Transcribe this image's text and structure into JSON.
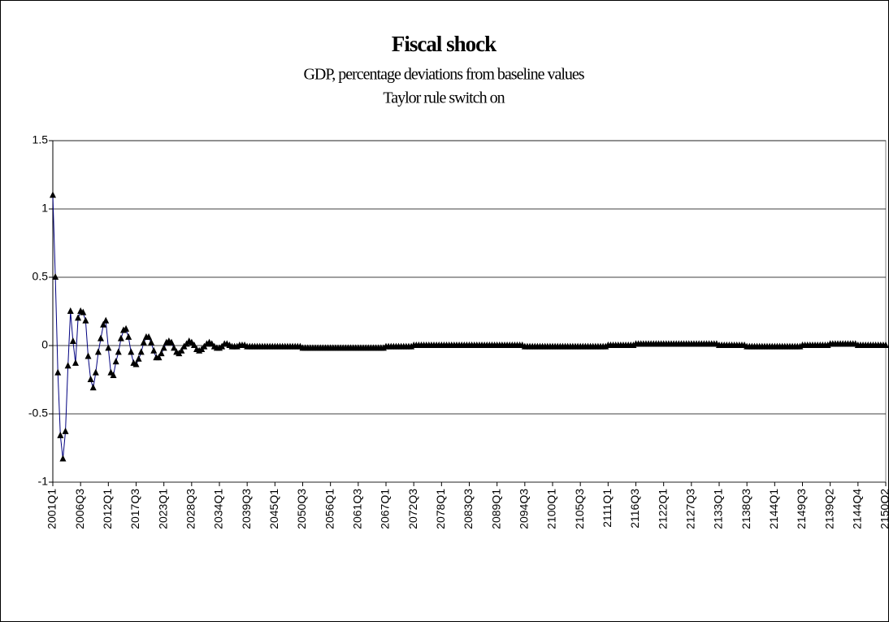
{
  "chart_data": {
    "type": "line",
    "title": "Fiscal shock",
    "subtitle": "GDP, percentage deviations from baseline values",
    "annotation": "Taylor rule switch on",
    "categories": [
      "2001Q1",
      null,
      null,
      null,
      null,
      null,
      null,
      null,
      null,
      null,
      null,
      "2006Q3",
      null,
      null,
      null,
      null,
      null,
      null,
      null,
      null,
      null,
      null,
      "2012Q1",
      null,
      null,
      null,
      null,
      null,
      null,
      null,
      null,
      null,
      null,
      "2017Q3",
      null,
      null,
      null,
      null,
      null,
      null,
      null,
      null,
      null,
      null,
      "2023Q1",
      null,
      null,
      null,
      null,
      null,
      null,
      null,
      null,
      null,
      null,
      "2028Q3",
      null,
      null,
      null,
      null,
      null,
      null,
      null,
      null,
      null,
      null,
      "2034Q1",
      null,
      null,
      null,
      null,
      null,
      null,
      null,
      null,
      null,
      null,
      "2039Q3",
      null,
      null,
      null,
      null,
      null,
      null,
      null,
      null,
      null,
      null,
      "2045Q1",
      null,
      null,
      null,
      null,
      null,
      null,
      null,
      null,
      null,
      null,
      "2050Q3",
      null,
      null,
      null,
      null,
      null,
      null,
      null,
      null,
      null,
      null,
      "2056Q1",
      null,
      null,
      null,
      null,
      null,
      null,
      null,
      null,
      null,
      null,
      "2061Q3",
      null,
      null,
      null,
      null,
      null,
      null,
      null,
      null,
      null,
      null,
      "2067Q1",
      null,
      null,
      null,
      null,
      null,
      null,
      null,
      null,
      null,
      null,
      "2072Q3",
      null,
      null,
      null,
      null,
      null,
      null,
      null,
      null,
      null,
      null,
      "2078Q1",
      null,
      null,
      null,
      null,
      null,
      null,
      null,
      null,
      null,
      null,
      "2083Q3",
      null,
      null,
      null,
      null,
      null,
      null,
      null,
      null,
      null,
      null,
      "2089Q1",
      null,
      null,
      null,
      null,
      null,
      null,
      null,
      null,
      null,
      null,
      "2094Q3",
      null,
      null,
      null,
      null,
      null,
      null,
      null,
      null,
      null,
      null,
      "2100Q1",
      null,
      null,
      null,
      null,
      null,
      null,
      null,
      null,
      null,
      null,
      "2105Q3",
      null,
      null,
      null,
      null,
      null,
      null,
      null,
      null,
      null,
      null,
      "2111Q1",
      null,
      null,
      null,
      null,
      null,
      null,
      null,
      null,
      null,
      null,
      "2116Q3",
      null,
      null,
      null,
      null,
      null,
      null,
      null,
      null,
      null,
      null,
      "2122Q1",
      null,
      null,
      null,
      null,
      null,
      null,
      null,
      null,
      null,
      null,
      "2127Q3",
      null,
      null,
      null,
      null,
      null,
      null,
      null,
      null,
      null,
      null,
      "2133Q1",
      null,
      null,
      null,
      null,
      null,
      null,
      null,
      null,
      null,
      null,
      "2138Q3",
      null,
      null,
      null,
      null,
      null,
      null,
      null,
      null,
      null,
      null,
      "2144Q1",
      null,
      null,
      null,
      null,
      null,
      null,
      null,
      null,
      null,
      null,
      "2149Q3",
      null,
      null,
      null,
      null,
      null,
      null,
      null,
      null,
      null,
      null,
      "2139Q2",
      null,
      null,
      null,
      null,
      null,
      null,
      null,
      null,
      null,
      null,
      "2144Q4",
      null,
      null,
      null,
      null,
      null,
      null,
      null,
      null,
      null,
      null,
      "2150Q2"
    ],
    "series": [
      {
        "color": "#000080",
        "marker_color": "#000000",
        "values": [
          1.1,
          0.5,
          -0.2,
          -0.66,
          -0.83,
          -0.63,
          -0.15,
          0.25,
          0.03,
          -0.13,
          0.2,
          0.25,
          0.24,
          0.18,
          -0.08,
          -0.25,
          -0.31,
          -0.2,
          -0.05,
          0.05,
          0.15,
          0.18,
          -0.02,
          -0.2,
          -0.22,
          -0.12,
          -0.05,
          0.05,
          0.11,
          0.12,
          0.06,
          -0.05,
          -0.13,
          -0.14,
          -0.1,
          -0.05,
          0.02,
          0.06,
          0.06,
          0.02,
          -0.04,
          -0.09,
          -0.09,
          -0.06,
          -0.02,
          0.02,
          0.03,
          0.02,
          -0.02,
          -0.05,
          -0.06,
          -0.04,
          -0.01,
          0.01,
          0.03,
          0.02,
          0,
          -0.03,
          -0.04,
          -0.03,
          -0.01,
          0.01,
          0.02,
          0.01,
          -0.01,
          -0.02,
          -0.02,
          -0.01,
          0.01,
          0.01,
          0,
          -0.01,
          -0.01,
          -0.01,
          0,
          0,
          0,
          -0.01,
          -0.01,
          -0.01,
          -0.01,
          -0.01,
          -0.01,
          -0.01,
          -0.01,
          -0.01,
          -0.01,
          -0.01,
          -0.01,
          -0.01,
          -0.01,
          -0.01,
          -0.01,
          -0.01,
          -0.01,
          -0.01,
          -0.01,
          -0.01,
          -0.01,
          -0.02,
          -0.02,
          -0.02,
          -0.02,
          -0.02,
          -0.02,
          -0.02,
          -0.02,
          -0.02,
          -0.02,
          -0.02,
          -0.02,
          -0.02,
          -0.02,
          -0.02,
          -0.02,
          -0.02,
          -0.02,
          -0.02,
          -0.02,
          -0.02,
          -0.02,
          -0.02,
          -0.02,
          -0.02,
          -0.02,
          -0.02,
          -0.02,
          -0.02,
          -0.02,
          -0.02,
          -0.02,
          -0.02,
          -0.01,
          -0.01,
          -0.01,
          -0.01,
          -0.01,
          -0.01,
          -0.01,
          -0.01,
          -0.01,
          -0.01,
          -0.01,
          0,
          0,
          0,
          0,
          0,
          0,
          0,
          0,
          0,
          0,
          0,
          0,
          0,
          0,
          0,
          0,
          0,
          0,
          0,
          0,
          0,
          0,
          0,
          0,
          0,
          0,
          0,
          0,
          0,
          0,
          0,
          0,
          0,
          0,
          0,
          0,
          0,
          0,
          0,
          0,
          0,
          0,
          0,
          0,
          -0.01,
          -0.01,
          -0.01,
          -0.01,
          -0.01,
          -0.01,
          -0.01,
          -0.01,
          -0.01,
          -0.01,
          -0.01,
          -0.01,
          -0.01,
          -0.01,
          -0.01,
          -0.01,
          -0.01,
          -0.01,
          -0.01,
          -0.01,
          -0.01,
          -0.01,
          -0.01,
          -0.01,
          -0.01,
          -0.01,
          -0.01,
          -0.01,
          -0.01,
          -0.01,
          -0.01,
          -0.01,
          -0.01,
          0,
          0,
          0,
          0,
          0,
          0,
          0,
          0,
          0,
          0,
          0,
          0.01,
          0.01,
          0.01,
          0.01,
          0.01,
          0.01,
          0.01,
          0.01,
          0.01,
          0.01,
          0.01,
          0.01,
          0.01,
          0.01,
          0.01,
          0.01,
          0.01,
          0.01,
          0.01,
          0.01,
          0.01,
          0.01,
          0.01,
          0.01,
          0.01,
          0.01,
          0.01,
          0.01,
          0.01,
          0.01,
          0.01,
          0.01,
          0.01,
          0,
          0,
          0,
          0,
          0,
          0,
          0,
          0,
          0,
          0,
          0,
          -0.01,
          -0.01,
          -0.01,
          -0.01,
          -0.01,
          -0.01,
          -0.01,
          -0.01,
          -0.01,
          -0.01,
          -0.01,
          -0.01,
          -0.01,
          -0.01,
          -0.01,
          -0.01,
          -0.01,
          -0.01,
          -0.01,
          -0.01,
          -0.01,
          -0.01,
          0,
          0,
          0,
          0,
          0,
          0,
          0,
          0,
          0,
          0,
          0,
          0.01,
          0.01,
          0.01,
          0.01,
          0.01,
          0.01,
          0.01,
          0.01,
          0.01,
          0.01,
          0.01,
          0,
          0,
          0,
          0,
          0,
          0,
          0,
          0,
          0,
          0,
          0,
          0
        ]
      }
    ],
    "ylim": [
      -1,
      1.5
    ],
    "yticks": [
      -1,
      -0.5,
      0,
      0.5,
      1,
      1.5
    ],
    "grid": true
  }
}
